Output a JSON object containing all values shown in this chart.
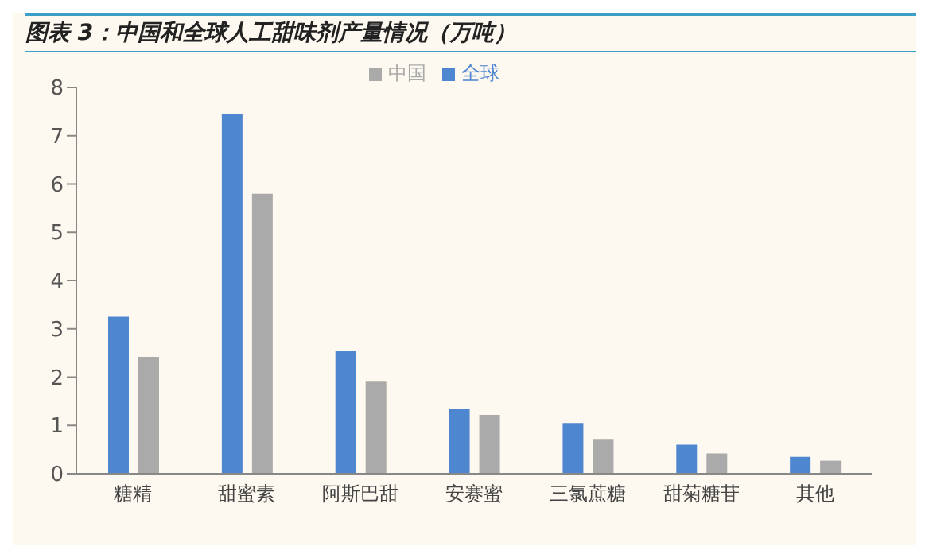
{
  "chart_data": {
    "type": "bar",
    "title": "图表 3：中国和全球人工甜味剂产量情况（万吨）",
    "categories": [
      "糖精",
      "甜蜜素",
      "阿斯巴甜",
      "安赛蜜",
      "三氯蔗糖",
      "甜菊糖苷",
      "其他"
    ],
    "series": [
      {
        "name": "全球",
        "color": "#4f86d0",
        "values": [
          3.25,
          7.45,
          2.55,
          1.35,
          1.05,
          0.6,
          0.35
        ]
      },
      {
        "name": "中国",
        "color": "#aaaaaa",
        "values": [
          2.42,
          5.8,
          1.92,
          1.22,
          0.72,
          0.42,
          0.27
        ]
      }
    ],
    "ylim": [
      0,
      8
    ],
    "yticks": [
      0,
      1,
      2,
      3,
      4,
      5,
      6,
      7,
      8
    ],
    "grid": false,
    "legend": "top"
  }
}
